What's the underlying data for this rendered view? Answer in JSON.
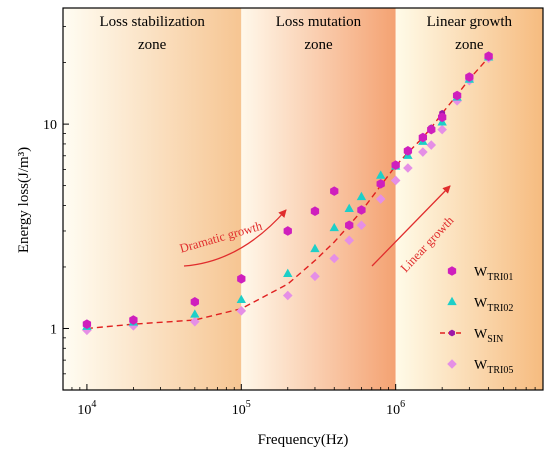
{
  "chart_data": {
    "type": "scatter",
    "title": "",
    "xlabel": "Frequency(Hz)",
    "ylabel": "Energy loss(J/m³)",
    "xscale": "log",
    "yscale": "log",
    "xlim": [
      7000,
      9000000
    ],
    "ylim": [
      0.5,
      37
    ],
    "grid": false,
    "legend_position": "bottom-right",
    "x_ticks": [
      {
        "value": 10000,
        "base": "10",
        "exp": "4"
      },
      {
        "value": 100000,
        "base": "10",
        "exp": "5"
      },
      {
        "value": 1000000,
        "base": "10",
        "exp": "6"
      }
    ],
    "y_ticks": [
      {
        "value": 1,
        "label": "1"
      },
      {
        "value": 10,
        "label": "10"
      }
    ],
    "zones": [
      {
        "label_lines": [
          "Loss stabilization",
          "zone"
        ],
        "x_start": 7000,
        "x_end": 100000,
        "gradient": [
          "#fffdf3",
          "#f6c592"
        ]
      },
      {
        "label_lines": [
          "Loss mutation",
          "zone"
        ],
        "x_start": 100000,
        "x_end": 1000000,
        "gradient": [
          "#fff8ea",
          "#f4a272"
        ]
      },
      {
        "label_lines": [
          "Linear growth",
          "zone"
        ],
        "x_start": 1000000,
        "x_end": 9000000,
        "gradient": [
          "#fffbe8",
          "#f6bb7f"
        ]
      }
    ],
    "annotations": [
      {
        "text": "Dramatic growth",
        "color": "#e02d2d"
      },
      {
        "text": "Linear growth",
        "color": "#e02d2d"
      }
    ],
    "series": [
      {
        "name": "W",
        "subscript": "TRI01",
        "marker": "hexagon",
        "color": "#cf1fbd",
        "points": [
          [
            10000,
            1.05
          ],
          [
            20000,
            1.1
          ],
          [
            50000,
            1.35
          ],
          [
            100000,
            1.75
          ],
          [
            200000,
            3.0
          ],
          [
            300000,
            3.75
          ],
          [
            400000,
            4.7
          ],
          [
            500000,
            3.2
          ],
          [
            600000,
            3.8
          ],
          [
            800000,
            5.1
          ],
          [
            1000000,
            6.3
          ],
          [
            1200000,
            7.4
          ],
          [
            1500000,
            8.6
          ],
          [
            1700000,
            9.4
          ],
          [
            2000000,
            10.8
          ],
          [
            2500000,
            13.8
          ],
          [
            3000000,
            17.0
          ],
          [
            4000000,
            21.5
          ]
        ]
      },
      {
        "name": "W",
        "subscript": "TRI02",
        "marker": "triangle",
        "color": "#1dcfc8",
        "points": [
          [
            10000,
            1.02
          ],
          [
            20000,
            1.07
          ],
          [
            50000,
            1.17
          ],
          [
            100000,
            1.38
          ],
          [
            200000,
            1.85
          ],
          [
            300000,
            2.45
          ],
          [
            400000,
            3.1
          ],
          [
            500000,
            3.85
          ],
          [
            600000,
            4.4
          ],
          [
            800000,
            5.6
          ],
          [
            1000000,
            6.2
          ],
          [
            1200000,
            7.0
          ],
          [
            1500000,
            8.2
          ],
          [
            2000000,
            10.2
          ],
          [
            2500000,
            13.5
          ],
          [
            3000000,
            16.5
          ],
          [
            4000000,
            21.2
          ]
        ]
      },
      {
        "name": "W",
        "subscript": "SIN",
        "marker": "line-hexagon",
        "color": "#e02020",
        "marker_color": "#9c16a8",
        "points": [
          [
            10000,
            1.0
          ],
          [
            20000,
            1.05
          ],
          [
            50000,
            1.1
          ],
          [
            100000,
            1.25
          ],
          [
            200000,
            1.65
          ],
          [
            300000,
            2.15
          ],
          [
            400000,
            2.65
          ],
          [
            500000,
            3.2
          ],
          [
            600000,
            3.75
          ],
          [
            800000,
            5.0
          ],
          [
            1000000,
            6.25
          ],
          [
            1200000,
            7.25
          ],
          [
            1500000,
            8.6
          ],
          [
            1700000,
            9.6
          ],
          [
            2000000,
            11.3
          ],
          [
            2500000,
            13.9
          ],
          [
            3000000,
            16.6
          ],
          [
            4000000,
            21.2
          ]
        ]
      },
      {
        "name": "W",
        "subscript": "TRI05",
        "marker": "diamond",
        "color": "#e58fe6",
        "points": [
          [
            10000,
            0.98
          ],
          [
            20000,
            1.03
          ],
          [
            50000,
            1.08
          ],
          [
            100000,
            1.22
          ],
          [
            200000,
            1.45
          ],
          [
            300000,
            1.8
          ],
          [
            400000,
            2.2
          ],
          [
            500000,
            2.7
          ],
          [
            600000,
            3.2
          ],
          [
            800000,
            4.3
          ],
          [
            1000000,
            5.3
          ],
          [
            1200000,
            6.1
          ],
          [
            1500000,
            7.3
          ],
          [
            1700000,
            7.9
          ],
          [
            2000000,
            9.4
          ],
          [
            2500000,
            13.0
          ],
          [
            3000000,
            16.3
          ],
          [
            4000000,
            21.0
          ]
        ]
      }
    ]
  }
}
